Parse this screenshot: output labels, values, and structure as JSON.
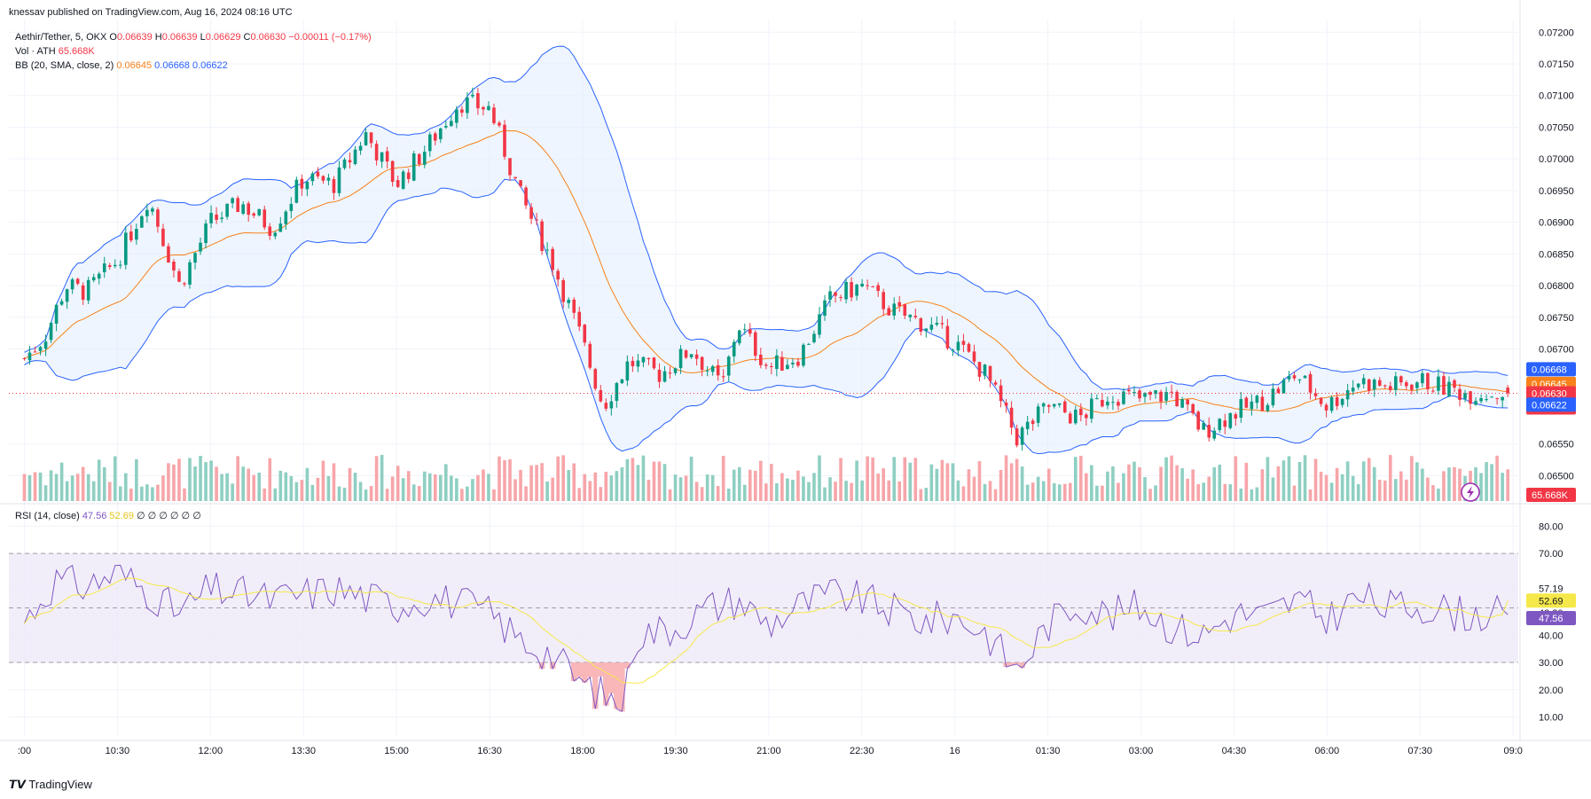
{
  "publish_note": "knessav published on TradingView.com, Aug 16, 2024 08:16 UTC",
  "legend": {
    "symbol": "Aethir/Tether, 5, OKX",
    "o_label": "O",
    "o": "0.06639",
    "h_label": "H",
    "h": "0.06639",
    "l_label": "L",
    "l": "0.06629",
    "c_label": "C",
    "c": "0.06630",
    "change": "−0.00011 (−0.17%)",
    "vol_label": "Vol · ATH",
    "vol_value": "65.668K",
    "bb_label": "BB (20, SMA, close, 2)",
    "bb_basis": "0.06645",
    "bb_upper": "0.06668",
    "bb_lower": "0.06622"
  },
  "rsi_legend": {
    "label": "RSI (14, close)",
    "rsi": "47.56",
    "ma": "52.69",
    "zeros": "∅ ∅ ∅ ∅ ∅ ∅"
  },
  "price_axis": {
    "ticks": [
      "0.07200",
      "0.07150",
      "0.07100",
      "0.07050",
      "0.07000",
      "0.06950",
      "0.06900",
      "0.06850",
      "0.06800",
      "0.06750",
      "0.06700",
      "0.06550",
      "0.06500"
    ],
    "badge_upper": "0.06668",
    "badge_basis": "0.06645",
    "badge_last": "0.06630",
    "badge_countdown": "03:28",
    "badge_lower": "0.06622",
    "badge_volume": "65.668K"
  },
  "rsi_axis": {
    "ticks": [
      "80.00",
      "70.00",
      "57.19",
      "48.20",
      "40.00",
      "30.00",
      "20.00",
      "10.00"
    ],
    "badge_ma": "52.69",
    "badge_rsi": "47.56"
  },
  "time_axis": {
    "ticks": [
      ":00",
      "10:30",
      "12:00",
      "13:30",
      "15:00",
      "16:30",
      "18:00",
      "19:30",
      "21:00",
      "22:30",
      "16",
      "01:30",
      "03:00",
      "04:30",
      "06:00",
      "07:30",
      "09:0"
    ]
  },
  "brand": "TradingView",
  "colors": {
    "up": "#089981",
    "down": "#f23645",
    "vol_up": "#8ecfc2",
    "vol_down": "#f7a5a9",
    "bb_band": "#2962ff",
    "bb_fill": "#e3effd",
    "bb_basis": "#f7821b",
    "rsi_line": "#7e57c2",
    "rsi_ma": "#f5e84a",
    "rsi_band": "#ede7f6",
    "last_price_line": "#f23645"
  },
  "chart_data": [
    {
      "type": "candlestick",
      "title": "Aethir/Tether, 5, OKX",
      "ylim": [
        0.0646,
        0.0722
      ],
      "anchors_close": [
        {
          "t": "09:00",
          "v": 0.06685
        },
        {
          "t": "09:20",
          "v": 0.0672
        },
        {
          "t": "09:40",
          "v": 0.068
        },
        {
          "t": "10:00",
          "v": 0.0679
        },
        {
          "t": "10:30",
          "v": 0.0684
        },
        {
          "t": "11:00",
          "v": 0.0694
        },
        {
          "t": "11:30",
          "v": 0.068
        },
        {
          "t": "12:00",
          "v": 0.069
        },
        {
          "t": "12:30",
          "v": 0.0693
        },
        {
          "t": "13:00",
          "v": 0.0689
        },
        {
          "t": "13:30",
          "v": 0.0697
        },
        {
          "t": "14:00",
          "v": 0.0696
        },
        {
          "t": "14:30",
          "v": 0.0704
        },
        {
          "t": "15:00",
          "v": 0.0696
        },
        {
          "t": "15:30",
          "v": 0.0702
        },
        {
          "t": "16:00",
          "v": 0.0709
        },
        {
          "t": "16:30",
          "v": 0.0708
        },
        {
          "t": "16:45",
          "v": 0.0701
        },
        {
          "t": "17:00",
          "v": 0.0694
        },
        {
          "t": "17:30",
          "v": 0.0684
        },
        {
          "t": "18:00",
          "v": 0.0671
        },
        {
          "t": "18:20",
          "v": 0.0661
        },
        {
          "t": "18:45",
          "v": 0.0668
        },
        {
          "t": "19:15",
          "v": 0.0666
        },
        {
          "t": "19:45",
          "v": 0.067
        },
        {
          "t": "20:15",
          "v": 0.0664
        },
        {
          "t": "20:30",
          "v": 0.0674
        },
        {
          "t": "21:00",
          "v": 0.0667
        },
        {
          "t": "21:30",
          "v": 0.0669
        },
        {
          "t": "22:00",
          "v": 0.0678
        },
        {
          "t": "22:30",
          "v": 0.068
        },
        {
          "t": "23:00",
          "v": 0.0676
        },
        {
          "t": "23:30",
          "v": 0.0674
        },
        {
          "t": "00:00",
          "v": 0.0671
        },
        {
          "t": "00:30",
          "v": 0.0666
        },
        {
          "t": "01:00",
          "v": 0.0656
        },
        {
          "t": "01:30",
          "v": 0.0661
        },
        {
          "t": "02:00",
          "v": 0.0659
        },
        {
          "t": "02:30",
          "v": 0.0663
        },
        {
          "t": "03:00",
          "v": 0.0662
        },
        {
          "t": "03:30",
          "v": 0.0663
        },
        {
          "t": "04:00",
          "v": 0.0657
        },
        {
          "t": "04:30",
          "v": 0.066
        },
        {
          "t": "05:00",
          "v": 0.0662
        },
        {
          "t": "05:30",
          "v": 0.0666
        },
        {
          "t": "06:00",
          "v": 0.0661
        },
        {
          "t": "06:30",
          "v": 0.0665
        },
        {
          "t": "07:00",
          "v": 0.0664
        },
        {
          "t": "07:30",
          "v": 0.0665
        },
        {
          "t": "08:15",
          "v": 0.0663
        }
      ],
      "last_close": 0.0663
    },
    {
      "type": "bar",
      "title": "Vol · ATH",
      "last_value": 65668
    },
    {
      "type": "line",
      "title": "RSI (14, close)",
      "ylim": [
        10,
        80
      ],
      "bands": [
        30,
        70
      ],
      "middle": 50,
      "rsi_anchors": [
        {
          "t": "09:00",
          "v": 45
        },
        {
          "t": "09:30",
          "v": 60
        },
        {
          "t": "10:00",
          "v": 58
        },
        {
          "t": "10:30",
          "v": 63
        },
        {
          "t": "11:00",
          "v": 56
        },
        {
          "t": "11:30",
          "v": 48
        },
        {
          "t": "12:00",
          "v": 57
        },
        {
          "t": "13:00",
          "v": 53
        },
        {
          "t": "14:00",
          "v": 57
        },
        {
          "t": "15:00",
          "v": 51
        },
        {
          "t": "15:30",
          "v": 54
        },
        {
          "t": "16:00",
          "v": 52
        },
        {
          "t": "16:30",
          "v": 48
        },
        {
          "t": "17:00",
          "v": 38
        },
        {
          "t": "17:30",
          "v": 33
        },
        {
          "t": "18:00",
          "v": 22
        },
        {
          "t": "18:40",
          "v": 14
        },
        {
          "t": "18:50",
          "v": 40
        },
        {
          "t": "19:30",
          "v": 43
        },
        {
          "t": "20:00",
          "v": 50
        },
        {
          "t": "20:30",
          "v": 53
        },
        {
          "t": "21:00",
          "v": 44
        },
        {
          "t": "21:30",
          "v": 51
        },
        {
          "t": "22:00",
          "v": 55
        },
        {
          "t": "22:30",
          "v": 53
        },
        {
          "t": "23:00",
          "v": 49
        },
        {
          "t": "23:30",
          "v": 45
        },
        {
          "t": "00:00",
          "v": 47
        },
        {
          "t": "00:30",
          "v": 41
        },
        {
          "t": "01:00",
          "v": 27
        },
        {
          "t": "01:30",
          "v": 44
        },
        {
          "t": "02:00",
          "v": 52
        },
        {
          "t": "02:30",
          "v": 47
        },
        {
          "t": "03:00",
          "v": 51
        },
        {
          "t": "03:30",
          "v": 43
        },
        {
          "t": "04:00",
          "v": 40
        },
        {
          "t": "04:30",
          "v": 48
        },
        {
          "t": "05:00",
          "v": 47
        },
        {
          "t": "05:30",
          "v": 53
        },
        {
          "t": "06:00",
          "v": 46
        },
        {
          "t": "06:30",
          "v": 54
        },
        {
          "t": "07:00",
          "v": 50
        },
        {
          "t": "07:30",
          "v": 51
        },
        {
          "t": "08:15",
          "v": 47.56
        }
      ],
      "ma_last": 52.69,
      "last_value": 47.56
    }
  ]
}
